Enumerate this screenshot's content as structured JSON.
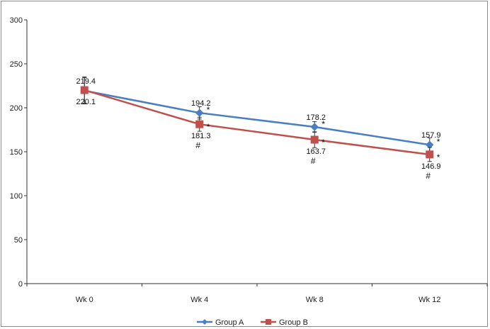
{
  "chart_data": {
    "type": "line",
    "title": "",
    "xlabel": "",
    "ylabel": "",
    "ylim": [
      0,
      300
    ],
    "yticks": [
      "0",
      "50",
      "100",
      "150",
      "200",
      "250",
      "300"
    ],
    "categories": [
      "Wk 0",
      "Wk 4",
      "Wk 8",
      "Wk 12"
    ],
    "series": [
      {
        "name": "Group A",
        "color": "#4a7ec2",
        "marker": "diamond",
        "values": [
          219.4,
          194.2,
          178.2,
          157.9
        ],
        "errors": [
          15,
          7,
          6,
          8
        ],
        "labels": [
          "219.4",
          "194.2",
          "178.2",
          "157.9"
        ],
        "stars": [
          "",
          "*",
          "*",
          "*"
        ]
      },
      {
        "name": "Group B",
        "color": "#c0504d",
        "marker": "square",
        "values": [
          220.1,
          181.3,
          163.7,
          146.9
        ],
        "errors": [
          15,
          8,
          9,
          8
        ],
        "labels": [
          "220.1",
          "181.3",
          "163.7",
          "146.9"
        ],
        "stars": [
          "",
          "*",
          "*",
          "*"
        ],
        "hashes": [
          "",
          "#",
          "#",
          "#"
        ]
      }
    ],
    "legend": "bottom",
    "grid": false
  }
}
